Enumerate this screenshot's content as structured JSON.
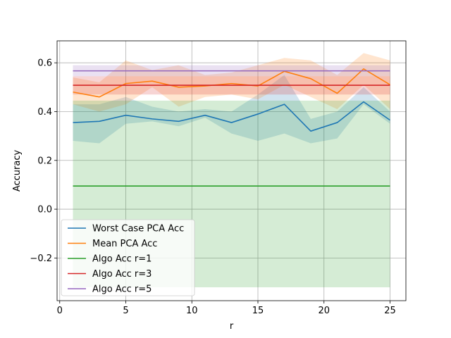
{
  "chart_data": {
    "type": "line",
    "title": "",
    "xlabel": "r",
    "ylabel": "Accuracy",
    "xlim": [
      -0.2,
      26.2
    ],
    "ylim": [
      -0.375,
      0.69
    ],
    "grid": true,
    "legend_position": "lower-left",
    "x_ticks": [
      {
        "value": 0,
        "label": "0"
      },
      {
        "value": 5,
        "label": "5"
      },
      {
        "value": 10,
        "label": "10"
      },
      {
        "value": 15,
        "label": "15"
      },
      {
        "value": 20,
        "label": "20"
      },
      {
        "value": 25,
        "label": "25"
      }
    ],
    "y_ticks": [
      {
        "value": -0.2,
        "label": "−0.2"
      },
      {
        "value": 0.0,
        "label": "0.0"
      },
      {
        "value": 0.2,
        "label": "0.2"
      },
      {
        "value": 0.4,
        "label": "0.4"
      },
      {
        "value": 0.6,
        "label": "0.6"
      }
    ],
    "x": [
      1,
      3,
      5,
      7,
      9,
      11,
      13,
      15,
      17,
      19,
      21,
      23,
      25
    ],
    "series": [
      {
        "name": "Worst Case PCA Acc",
        "color": "#1f77b4",
        "values": [
          0.355,
          0.36,
          0.385,
          0.37,
          0.36,
          0.385,
          0.355,
          0.39,
          0.43,
          0.32,
          0.355,
          0.44,
          0.365
        ],
        "band_upper": [
          0.43,
          0.43,
          0.46,
          0.42,
          0.4,
          0.41,
          0.4,
          0.47,
          0.55,
          0.37,
          0.4,
          0.5,
          0.4
        ],
        "band_lower": [
          0.28,
          0.27,
          0.35,
          0.36,
          0.34,
          0.375,
          0.31,
          0.28,
          0.31,
          0.27,
          0.29,
          0.43,
          0.35
        ]
      },
      {
        "name": "Mean PCA Acc",
        "color": "#ff7f0e",
        "values": [
          0.48,
          0.46,
          0.515,
          0.525,
          0.5,
          0.505,
          0.515,
          0.505,
          0.565,
          0.535,
          0.475,
          0.575,
          0.51
        ],
        "band_upper": [
          0.54,
          0.52,
          0.61,
          0.57,
          0.59,
          0.55,
          0.56,
          0.59,
          0.62,
          0.61,
          0.55,
          0.64,
          0.61
        ],
        "band_lower": [
          0.43,
          0.4,
          0.43,
          0.5,
          0.42,
          0.46,
          0.47,
          0.45,
          0.51,
          0.46,
          0.41,
          0.51,
          0.41
        ]
      },
      {
        "name": "Algo Acc r=1",
        "color": "#2ca02c",
        "values": [
          0.095,
          0.095,
          0.095,
          0.095,
          0.095,
          0.095,
          0.095,
          0.095,
          0.095,
          0.095,
          0.095,
          0.095,
          0.095
        ],
        "band_upper": [
          0.445,
          0.445,
          0.445,
          0.445,
          0.445,
          0.445,
          0.445,
          0.445,
          0.445,
          0.445,
          0.445,
          0.445,
          0.445
        ],
        "band_lower": [
          -0.32,
          -0.32,
          -0.32,
          -0.32,
          -0.32,
          -0.32,
          -0.32,
          -0.32,
          -0.32,
          -0.32,
          -0.32,
          -0.32,
          -0.32
        ]
      },
      {
        "name": "Algo Acc r=3",
        "color": "#d62728",
        "values": [
          0.508,
          0.508,
          0.508,
          0.508,
          0.508,
          0.508,
          0.508,
          0.508,
          0.508,
          0.508,
          0.508,
          0.508,
          0.508
        ],
        "band_upper": [
          0.545,
          0.545,
          0.545,
          0.545,
          0.545,
          0.545,
          0.545,
          0.545,
          0.545,
          0.545,
          0.545,
          0.545,
          0.545
        ],
        "band_lower": [
          0.47,
          0.47,
          0.47,
          0.47,
          0.47,
          0.47,
          0.47,
          0.47,
          0.47,
          0.47,
          0.47,
          0.47,
          0.47
        ]
      },
      {
        "name": "Algo Acc r=5",
        "color": "#9467bd",
        "values": [
          0.567,
          0.567,
          0.567,
          0.567,
          0.567,
          0.567,
          0.567,
          0.567,
          0.567,
          0.567,
          0.567,
          0.567,
          0.567
        ],
        "band_upper": [
          0.59,
          0.59,
          0.59,
          0.59,
          0.59,
          0.59,
          0.59,
          0.59,
          0.59,
          0.59,
          0.59,
          0.59,
          0.59
        ],
        "band_lower": [
          0.545,
          0.545,
          0.545,
          0.545,
          0.545,
          0.545,
          0.545,
          0.545,
          0.545,
          0.545,
          0.545,
          0.545,
          0.545
        ]
      }
    ]
  }
}
